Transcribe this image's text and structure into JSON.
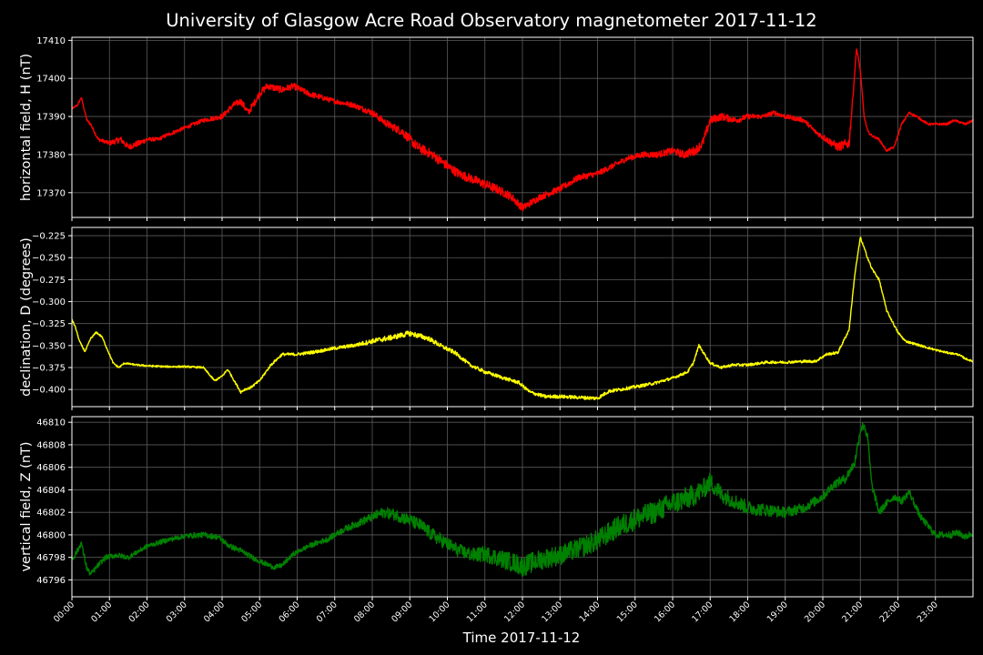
{
  "title": "University of Glasgow Acre Road Observatory magnetometer 2017-11-12",
  "xlabel": "Time 2017-11-12",
  "colors": {
    "background": "#000000",
    "text": "#ffffff",
    "grid": "#5a5a5a"
  },
  "chart_data": [
    {
      "type": "line",
      "ylabel": "horizontal field, H (nT)",
      "x_unit": "hours",
      "xlim": [
        0,
        24
      ],
      "ylim": [
        17363.5,
        17410.8
      ],
      "y_ticks": [
        17370,
        17380,
        17390,
        17400,
        17410
      ],
      "y_tick_labels": [
        "17370",
        "17380",
        "17390",
        "17400",
        "17410"
      ],
      "x_tick_labels": [
        "00:00",
        "01:00",
        "02:00",
        "03:00",
        "04:00",
        "05:00",
        "06:00",
        "07:00",
        "08:00",
        "09:00",
        "10:00",
        "11:00",
        "12:00",
        "13:00",
        "14:00",
        "15:00",
        "16:00",
        "17:00",
        "18:00",
        "19:00",
        "20:00",
        "21:00",
        "22:00",
        "23:00"
      ],
      "grid": true,
      "noise": [
        [
          0,
          0.2
        ],
        [
          0.9,
          0.5
        ],
        [
          1.2,
          0.8
        ],
        [
          1.8,
          0.8
        ],
        [
          2.1,
          0.5
        ],
        [
          3.3,
          0.5
        ],
        [
          3.7,
          0.6
        ],
        [
          4.6,
          0.9
        ],
        [
          5.6,
          0.9
        ],
        [
          7.2,
          0.6
        ],
        [
          8.2,
          0.9
        ],
        [
          9.2,
          1.3
        ],
        [
          10.2,
          1.2
        ],
        [
          11.3,
          1.2
        ],
        [
          12.3,
          0.9
        ],
        [
          13.7,
          0.8
        ],
        [
          14.7,
          0.7
        ],
        [
          16,
          0.9
        ],
        [
          16.6,
          1.2
        ],
        [
          17.0,
          1.1
        ],
        [
          18.2,
          0.6
        ],
        [
          19.8,
          0.6
        ],
        [
          20.7,
          1.4
        ],
        [
          20.9,
          0.3
        ],
        [
          24,
          0.3
        ]
      ],
      "series": [
        {
          "color": "#ff0000",
          "x": [
            0,
            0.15,
            0.25,
            0.4,
            0.5,
            0.7,
            1.0,
            1.3,
            1.5,
            1.8,
            2.0,
            2.3,
            2.5,
            3.0,
            3.5,
            4.0,
            4.3,
            4.5,
            4.7,
            5.0,
            5.2,
            5.6,
            5.9,
            6.3,
            7.0,
            7.5,
            8.0,
            8.4,
            8.8,
            9.2,
            9.6,
            10.0,
            10.3,
            10.8,
            11.3,
            11.7,
            12.0,
            12.5,
            13.0,
            13.5,
            14.0,
            14.4,
            14.8,
            15.2,
            15.6,
            16.0,
            16.3,
            16.6,
            16.8,
            17.0,
            17.3,
            17.7,
            18.0,
            18.4,
            18.7,
            19.0,
            19.5,
            19.8,
            20.1,
            20.4,
            20.7,
            20.8,
            20.9,
            21.0,
            21.1,
            21.2,
            21.3,
            21.5,
            21.7,
            21.9,
            22.1,
            22.3,
            22.5,
            22.8,
            23.0,
            23.3,
            23.5,
            23.8,
            24.0
          ],
          "y": [
            17392,
            17393,
            17395,
            17389,
            17388,
            17384,
            17383,
            17384,
            17382,
            17383,
            17384,
            17384,
            17385,
            17387,
            17389,
            17390,
            17393,
            17394,
            17391,
            17396,
            17398,
            17397,
            17398,
            17396,
            17394,
            17393,
            17391,
            17388,
            17386,
            17382,
            17380,
            17377,
            17375,
            17373,
            17371,
            17369,
            17366,
            17369,
            17371,
            17374,
            17375,
            17377,
            17379,
            17380,
            17380,
            17381,
            17380,
            17381,
            17383,
            17389,
            17390,
            17389,
            17390,
            17390,
            17391,
            17390,
            17389,
            17386,
            17384,
            17382,
            17383,
            17395,
            17408,
            17402,
            17390,
            17386,
            17385,
            17384,
            17381,
            17382,
            17388,
            17391,
            17390,
            17388,
            17388,
            17388,
            17389,
            17388,
            17389
          ]
        }
      ]
    },
    {
      "type": "line",
      "ylabel": "declination, D (degrees)",
      "x_unit": "hours",
      "xlim": [
        0,
        24
      ],
      "ylim": [
        -0.4195,
        -0.2156
      ],
      "y_ticks": [
        -0.4,
        -0.375,
        -0.35,
        -0.325,
        -0.3,
        -0.275,
        -0.25,
        -0.225
      ],
      "y_tick_labels": [
        "−0.400",
        "−0.375",
        "−0.350",
        "−0.325",
        "−0.300",
        "−0.275",
        "−0.250",
        "−0.225"
      ],
      "x_tick_labels": [
        "00:00",
        "01:00",
        "02:00",
        "03:00",
        "04:00",
        "05:00",
        "06:00",
        "07:00",
        "08:00",
        "09:00",
        "10:00",
        "11:00",
        "12:00",
        "13:00",
        "14:00",
        "15:00",
        "16:00",
        "17:00",
        "18:00",
        "19:00",
        "20:00",
        "21:00",
        "22:00",
        "23:00"
      ],
      "grid": true,
      "noise": [
        [
          0,
          0.001
        ],
        [
          3.5,
          0.001
        ],
        [
          6.5,
          0.0018
        ],
        [
          7.5,
          0.002
        ],
        [
          8.2,
          0.003
        ],
        [
          9.2,
          0.003
        ],
        [
          10.5,
          0.002
        ],
        [
          12.5,
          0.002
        ],
        [
          14.0,
          0.002
        ],
        [
          16.5,
          0.0015
        ],
        [
          20.5,
          0.0015
        ],
        [
          24,
          0.001
        ]
      ],
      "series": [
        {
          "color": "#ffff00",
          "x": [
            0,
            0.1,
            0.2,
            0.35,
            0.5,
            0.65,
            0.8,
            1.0,
            1.1,
            1.25,
            1.4,
            1.7,
            2.0,
            2.5,
            3.0,
            3.5,
            3.8,
            4.0,
            4.15,
            4.35,
            4.5,
            4.6,
            4.75,
            5.0,
            5.3,
            5.6,
            6.0,
            6.5,
            7.0,
            7.5,
            8.0,
            8.5,
            9.0,
            9.5,
            9.9,
            10.2,
            10.6,
            11.0,
            11.5,
            11.9,
            12.2,
            12.6,
            13.0,
            13.5,
            14.0,
            14.3,
            14.6,
            15.0,
            15.5,
            16.0,
            16.4,
            16.55,
            16.7,
            16.85,
            17.0,
            17.3,
            17.6,
            18.0,
            18.5,
            19.0,
            19.5,
            19.8,
            20.1,
            20.4,
            20.55,
            20.7,
            20.85,
            21.0,
            21.15,
            21.3,
            21.5,
            21.7,
            22.0,
            22.2,
            22.6,
            23.0,
            23.3,
            23.6,
            23.8,
            24.0
          ],
          "y": [
            -0.32,
            -0.33,
            -0.345,
            -0.357,
            -0.342,
            -0.335,
            -0.34,
            -0.36,
            -0.37,
            -0.375,
            -0.37,
            -0.372,
            -0.373,
            -0.374,
            -0.374,
            -0.375,
            -0.39,
            -0.385,
            -0.377,
            -0.392,
            -0.403,
            -0.4,
            -0.398,
            -0.39,
            -0.372,
            -0.36,
            -0.36,
            -0.357,
            -0.353,
            -0.35,
            -0.345,
            -0.341,
            -0.336,
            -0.342,
            -0.352,
            -0.358,
            -0.372,
            -0.38,
            -0.387,
            -0.392,
            -0.403,
            -0.408,
            -0.408,
            -0.409,
            -0.41,
            -0.402,
            -0.4,
            -0.397,
            -0.393,
            -0.387,
            -0.38,
            -0.37,
            -0.35,
            -0.36,
            -0.37,
            -0.375,
            -0.372,
            -0.372,
            -0.369,
            -0.369,
            -0.368,
            -0.368,
            -0.36,
            -0.358,
            -0.345,
            -0.332,
            -0.27,
            -0.227,
            -0.245,
            -0.262,
            -0.275,
            -0.31,
            -0.335,
            -0.345,
            -0.35,
            -0.355,
            -0.358,
            -0.36,
            -0.365,
            -0.368
          ]
        }
      ]
    },
    {
      "type": "line",
      "ylabel": "vertical field, Z (nT)",
      "x_unit": "hours",
      "xlim": [
        0,
        24
      ],
      "ylim": [
        46794.5,
        46810.5
      ],
      "y_ticks": [
        46796,
        46798,
        46800,
        46802,
        46804,
        46806,
        46808,
        46810
      ],
      "y_tick_labels": [
        "46796",
        "46798",
        "46800",
        "46802",
        "46804",
        "46806",
        "46808",
        "46810"
      ],
      "x_tick_labels": [
        "00:00",
        "01:00",
        "02:00",
        "03:00",
        "04:00",
        "05:00",
        "06:00",
        "07:00",
        "08:00",
        "09:00",
        "10:00",
        "11:00",
        "12:00",
        "13:00",
        "14:00",
        "15:00",
        "16:00",
        "17:00",
        "18:00",
        "19:00",
        "20:00",
        "21:00",
        "22:00",
        "23:00"
      ],
      "grid": true,
      "noise": [
        [
          0,
          0.25
        ],
        [
          2,
          0.2
        ],
        [
          4,
          0.25
        ],
        [
          6,
          0.2
        ],
        [
          7.5,
          0.3
        ],
        [
          8.5,
          0.5
        ],
        [
          9.3,
          0.6
        ],
        [
          10.5,
          0.6
        ],
        [
          12.0,
          0.9
        ],
        [
          13.5,
          0.9
        ],
        [
          15.0,
          1.0
        ],
        [
          16.5,
          1.0
        ],
        [
          17.5,
          0.7
        ],
        [
          18.8,
          0.5
        ],
        [
          20.0,
          0.4
        ],
        [
          21.0,
          0.4
        ],
        [
          22.0,
          0.3
        ],
        [
          24,
          0.3
        ]
      ],
      "series": [
        {
          "color": "#008000",
          "x": [
            0,
            0.15,
            0.25,
            0.4,
            0.5,
            0.7,
            0.9,
            1.2,
            1.5,
            1.8,
            2.0,
            2.5,
            3.0,
            3.5,
            3.9,
            4.2,
            4.5,
            4.8,
            5.1,
            5.4,
            5.6,
            5.9,
            6.3,
            6.8,
            7.2,
            7.6,
            8.0,
            8.3,
            8.6,
            9.0,
            9.3,
            9.6,
            10.0,
            10.3,
            10.7,
            11.0,
            11.4,
            11.8,
            12.0,
            12.3,
            12.7,
            13.0,
            13.5,
            14.0,
            14.5,
            15.0,
            15.5,
            16.0,
            16.5,
            16.8,
            17.0,
            17.3,
            17.7,
            18.0,
            18.5,
            19.0,
            19.5,
            20.0,
            20.3,
            20.6,
            20.85,
            21.0,
            21.1,
            21.2,
            21.3,
            21.5,
            21.7,
            21.9,
            22.1,
            22.3,
            22.6,
            23.0,
            23.4,
            23.6,
            23.8,
            24.0
          ],
          "y": [
            46797.8,
            46798.6,
            46799.3,
            46797,
            46796.5,
            46797.3,
            46798,
            46798.2,
            46798,
            46798.6,
            46799,
            46799.5,
            46799.9,
            46800,
            46799.8,
            46799,
            46798.6,
            46798,
            46797.5,
            46797.1,
            46797.3,
            46798.3,
            46799,
            46799.6,
            46800.4,
            46801,
            46801.6,
            46802,
            46801.8,
            46801.3,
            46800.8,
            46800,
            46799.2,
            46798.6,
            46798.2,
            46798.3,
            46797.9,
            46797.5,
            46797.2,
            46797.6,
            46798,
            46798.2,
            46798.8,
            46799.5,
            46800.6,
            46801.4,
            46802,
            46802.8,
            46803.4,
            46804,
            46804.7,
            46803.6,
            46802.9,
            46802.4,
            46802.2,
            46802,
            46802.4,
            46803.4,
            46804.5,
            46805,
            46806.4,
            46809.3,
            46809.8,
            46808.5,
            46804.5,
            46802,
            46802.8,
            46803.4,
            46803,
            46803.8,
            46801.6,
            46800,
            46800,
            46800.2,
            46799.8,
            46800.2
          ]
        }
      ]
    }
  ]
}
